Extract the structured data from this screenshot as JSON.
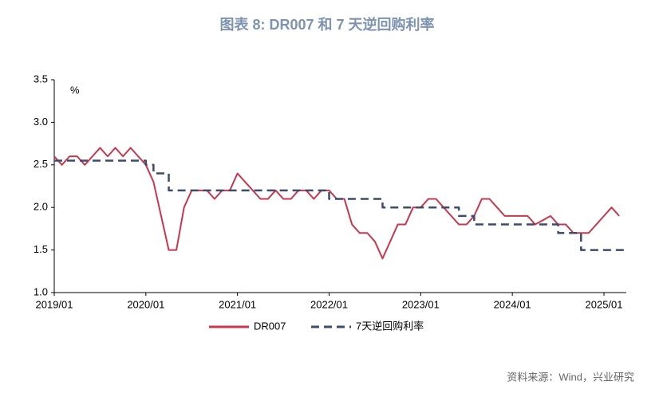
{
  "chart_data": {
    "type": "line",
    "title": "图表 8:   DR007 和 7 天逆回购利率",
    "y_label": "%",
    "source": "资料来源：Wind，兴业研究",
    "x": [
      "2019/01",
      "2019/02",
      "2019/03",
      "2019/04",
      "2019/05",
      "2019/06",
      "2019/07",
      "2019/08",
      "2019/09",
      "2019/10",
      "2019/11",
      "2019/12",
      "2020/01",
      "2020/02",
      "2020/03",
      "2020/04",
      "2020/05",
      "2020/06",
      "2020/07",
      "2020/08",
      "2020/09",
      "2020/10",
      "2020/11",
      "2020/12",
      "2021/01",
      "2021/02",
      "2021/03",
      "2021/04",
      "2021/05",
      "2021/06",
      "2021/07",
      "2021/08",
      "2021/09",
      "2021/10",
      "2021/11",
      "2021/12",
      "2022/01",
      "2022/02",
      "2022/03",
      "2022/04",
      "2022/05",
      "2022/06",
      "2022/07",
      "2022/08",
      "2022/09",
      "2022/10",
      "2022/11",
      "2022/12",
      "2023/01",
      "2023/02",
      "2023/03",
      "2023/04",
      "2023/05",
      "2023/06",
      "2023/07",
      "2023/08",
      "2023/09",
      "2023/10",
      "2023/11",
      "2023/12",
      "2024/01",
      "2024/02",
      "2024/03",
      "2024/04",
      "2024/05",
      "2024/06",
      "2024/07",
      "2024/08",
      "2024/09",
      "2024/10",
      "2024/11",
      "2024/12",
      "2025/01",
      "2025/02",
      "2025/03"
    ],
    "xticks": [
      "2019/01",
      "2020/01",
      "2021/01",
      "2022/01",
      "2023/01",
      "2024/01",
      "2025/01"
    ],
    "series": [
      {
        "name": "DR007",
        "color": "#c8374d",
        "style": "solid",
        "values": [
          2.6,
          2.5,
          2.6,
          2.6,
          2.5,
          2.6,
          2.7,
          2.6,
          2.7,
          2.6,
          2.7,
          2.6,
          2.5,
          2.3,
          1.9,
          1.5,
          1.5,
          2.0,
          2.2,
          2.2,
          2.2,
          2.1,
          2.2,
          2.2,
          2.4,
          2.3,
          2.2,
          2.1,
          2.1,
          2.2,
          2.1,
          2.1,
          2.2,
          2.2,
          2.1,
          2.2,
          2.2,
          2.1,
          2.1,
          1.8,
          1.7,
          1.7,
          1.6,
          1.4,
          1.6,
          1.8,
          1.8,
          2.0,
          2.0,
          2.1,
          2.1,
          2.0,
          1.9,
          1.8,
          1.8,
          1.9,
          2.1,
          2.1,
          2.0,
          1.9,
          1.9,
          1.9,
          1.9,
          1.8,
          1.85,
          1.9,
          1.8,
          1.8,
          1.7,
          1.7,
          1.7,
          1.8,
          1.9,
          2.0,
          1.9
        ]
      },
      {
        "name": "7天逆回购利率",
        "color": "#3d4c6b",
        "style": "dashed-step",
        "values": [
          2.55,
          2.55,
          2.55,
          2.55,
          2.55,
          2.55,
          2.55,
          2.55,
          2.55,
          2.55,
          2.55,
          2.55,
          2.5,
          2.4,
          2.4,
          2.2,
          2.2,
          2.2,
          2.2,
          2.2,
          2.2,
          2.2,
          2.2,
          2.2,
          2.2,
          2.2,
          2.2,
          2.2,
          2.2,
          2.2,
          2.2,
          2.2,
          2.2,
          2.2,
          2.2,
          2.2,
          2.1,
          2.1,
          2.1,
          2.1,
          2.1,
          2.1,
          2.1,
          2.0,
          2.0,
          2.0,
          2.0,
          2.0,
          2.0,
          2.0,
          2.0,
          2.0,
          2.0,
          1.9,
          1.9,
          1.8,
          1.8,
          1.8,
          1.8,
          1.8,
          1.8,
          1.8,
          1.8,
          1.8,
          1.8,
          1.8,
          1.7,
          1.7,
          1.7,
          1.5,
          1.5,
          1.5,
          1.5,
          1.5,
          1.5
        ]
      }
    ],
    "ylim": [
      1.0,
      3.5
    ],
    "yticks": [
      {
        "value": 1.0,
        "label": "1.0"
      },
      {
        "value": 1.5,
        "label": "1.5"
      },
      {
        "value": 2.0,
        "label": "2.0"
      },
      {
        "value": 2.5,
        "label": "2.5"
      },
      {
        "value": 3.0,
        "label": "3.0"
      },
      {
        "value": 3.5,
        "label": "3.5"
      }
    ],
    "legend": "bottom"
  }
}
